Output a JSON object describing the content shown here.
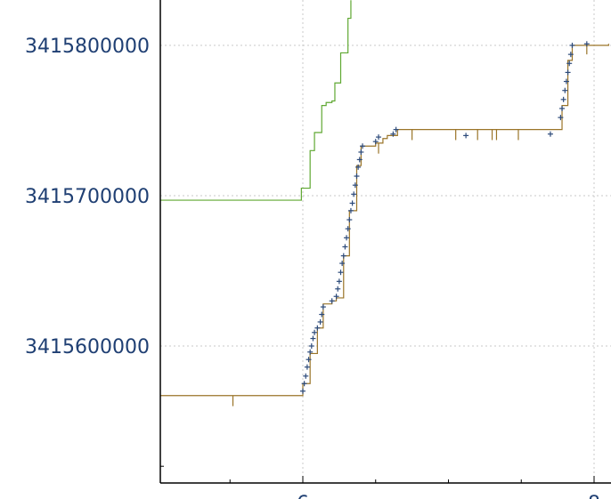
{
  "chart_data": {
    "type": "line",
    "title": "",
    "xlabel": "",
    "ylabel": "",
    "x_ticks": [
      {
        "value": 6,
        "label": "6"
      },
      {
        "value": 8,
        "label": "8"
      }
    ],
    "y_ticks": [
      {
        "value": 3415600000,
        "label": "3415600000"
      },
      {
        "value": 3415700000,
        "label": "3415700000"
      },
      {
        "value": 3415800000,
        "label": "3415800000"
      }
    ],
    "xlim": [
      5.0,
      8.1
    ],
    "ylim": [
      3415510000,
      3415830000
    ],
    "grid": true,
    "colors": {
      "axis": "#000000",
      "tick_label": "#1f3f73",
      "grid": "#c8c8c8",
      "green_series": "#5fa832",
      "brown_series": "#9a7428",
      "marker": "#2c4a7a"
    },
    "series": [
      {
        "style": "step",
        "color": "#5fa832",
        "points": [
          [
            5.0,
            3415697000
          ],
          [
            5.97,
            3415697000
          ],
          [
            5.99,
            3415705000
          ],
          [
            6.05,
            3415730000
          ],
          [
            6.08,
            3415742000
          ],
          [
            6.11,
            3415742000
          ],
          [
            6.13,
            3415760000
          ],
          [
            6.16,
            3415762000
          ],
          [
            6.2,
            3415763000
          ],
          [
            6.22,
            3415775000
          ],
          [
            6.26,
            3415795000
          ],
          [
            6.31,
            3415818000
          ],
          [
            6.33,
            3415830000
          ]
        ]
      },
      {
        "style": "step",
        "color": "#9a7428",
        "points": [
          [
            5.0,
            3415567000
          ],
          [
            5.98,
            3415567000
          ],
          [
            6.0,
            3415575000
          ],
          [
            6.05,
            3415595000
          ],
          [
            6.1,
            3415612000
          ],
          [
            6.14,
            3415628000
          ],
          [
            6.2,
            3415630000
          ],
          [
            6.23,
            3415632000
          ],
          [
            6.28,
            3415660000
          ],
          [
            6.32,
            3415690000
          ],
          [
            6.37,
            3415720000
          ],
          [
            6.4,
            3415733000
          ],
          [
            6.5,
            3415735000
          ],
          [
            6.55,
            3415738000
          ],
          [
            6.58,
            3415740000
          ],
          [
            6.65,
            3415744000
          ],
          [
            7.75,
            3415744000
          ],
          [
            7.78,
            3415760000
          ],
          [
            7.82,
            3415790000
          ],
          [
            7.85,
            3415800000
          ],
          [
            8.1,
            3415801000
          ]
        ],
        "spikes": [
          {
            "x": 5.52,
            "y": 3415567000,
            "y2": 3415560000
          },
          {
            "x": 6.52,
            "y": 3415735000,
            "y2": 3415728000
          },
          {
            "x": 6.75,
            "y": 3415744000,
            "y2": 3415737000
          },
          {
            "x": 7.05,
            "y": 3415744000,
            "y2": 3415737000
          },
          {
            "x": 7.2,
            "y": 3415744000,
            "y2": 3415737000
          },
          {
            "x": 7.3,
            "y": 3415744000,
            "y2": 3415737000
          },
          {
            "x": 7.33,
            "y": 3415744000,
            "y2": 3415737000
          },
          {
            "x": 7.48,
            "y": 3415744000,
            "y2": 3415737000
          },
          {
            "x": 7.95,
            "y": 3415801000,
            "y2": 3415794000
          }
        ]
      },
      {
        "style": "markers",
        "color": "#2c4a7a",
        "marker": "+",
        "points": [
          [
            6.0,
            3415570000
          ],
          [
            6.01,
            3415575000
          ],
          [
            6.02,
            3415580000
          ],
          [
            6.03,
            3415586000
          ],
          [
            6.04,
            3415591000
          ],
          [
            6.05,
            3415596000
          ],
          [
            6.06,
            3415600000
          ],
          [
            6.07,
            3415605000
          ],
          [
            6.08,
            3415609000
          ],
          [
            6.1,
            3415612000
          ],
          [
            6.12,
            3415616000
          ],
          [
            6.13,
            3415621000
          ],
          [
            6.14,
            3415626000
          ],
          [
            6.2,
            3415630000
          ],
          [
            6.23,
            3415633000
          ],
          [
            6.24,
            3415638000
          ],
          [
            6.25,
            3415643000
          ],
          [
            6.26,
            3415649000
          ],
          [
            6.27,
            3415655000
          ],
          [
            6.28,
            3415660000
          ],
          [
            6.29,
            3415666000
          ],
          [
            6.3,
            3415672000
          ],
          [
            6.31,
            3415678000
          ],
          [
            6.32,
            3415684000
          ],
          [
            6.33,
            3415690000
          ],
          [
            6.34,
            3415695000
          ],
          [
            6.35,
            3415701000
          ],
          [
            6.36,
            3415707000
          ],
          [
            6.37,
            3415713000
          ],
          [
            6.38,
            3415719000
          ],
          [
            6.39,
            3415724000
          ],
          [
            6.4,
            3415729000
          ],
          [
            6.41,
            3415733000
          ],
          [
            6.5,
            3415736000
          ],
          [
            6.52,
            3415739000
          ],
          [
            6.62,
            3415741000
          ],
          [
            6.64,
            3415744000
          ],
          [
            7.12,
            3415740000
          ],
          [
            7.7,
            3415741000
          ],
          [
            7.77,
            3415752000
          ],
          [
            7.78,
            3415758000
          ],
          [
            7.79,
            3415764000
          ],
          [
            7.8,
            3415770000
          ],
          [
            7.81,
            3415776000
          ],
          [
            7.82,
            3415782000
          ],
          [
            7.83,
            3415788000
          ],
          [
            7.84,
            3415794000
          ],
          [
            7.85,
            3415800000
          ],
          [
            7.95,
            3415801000
          ]
        ]
      }
    ]
  }
}
